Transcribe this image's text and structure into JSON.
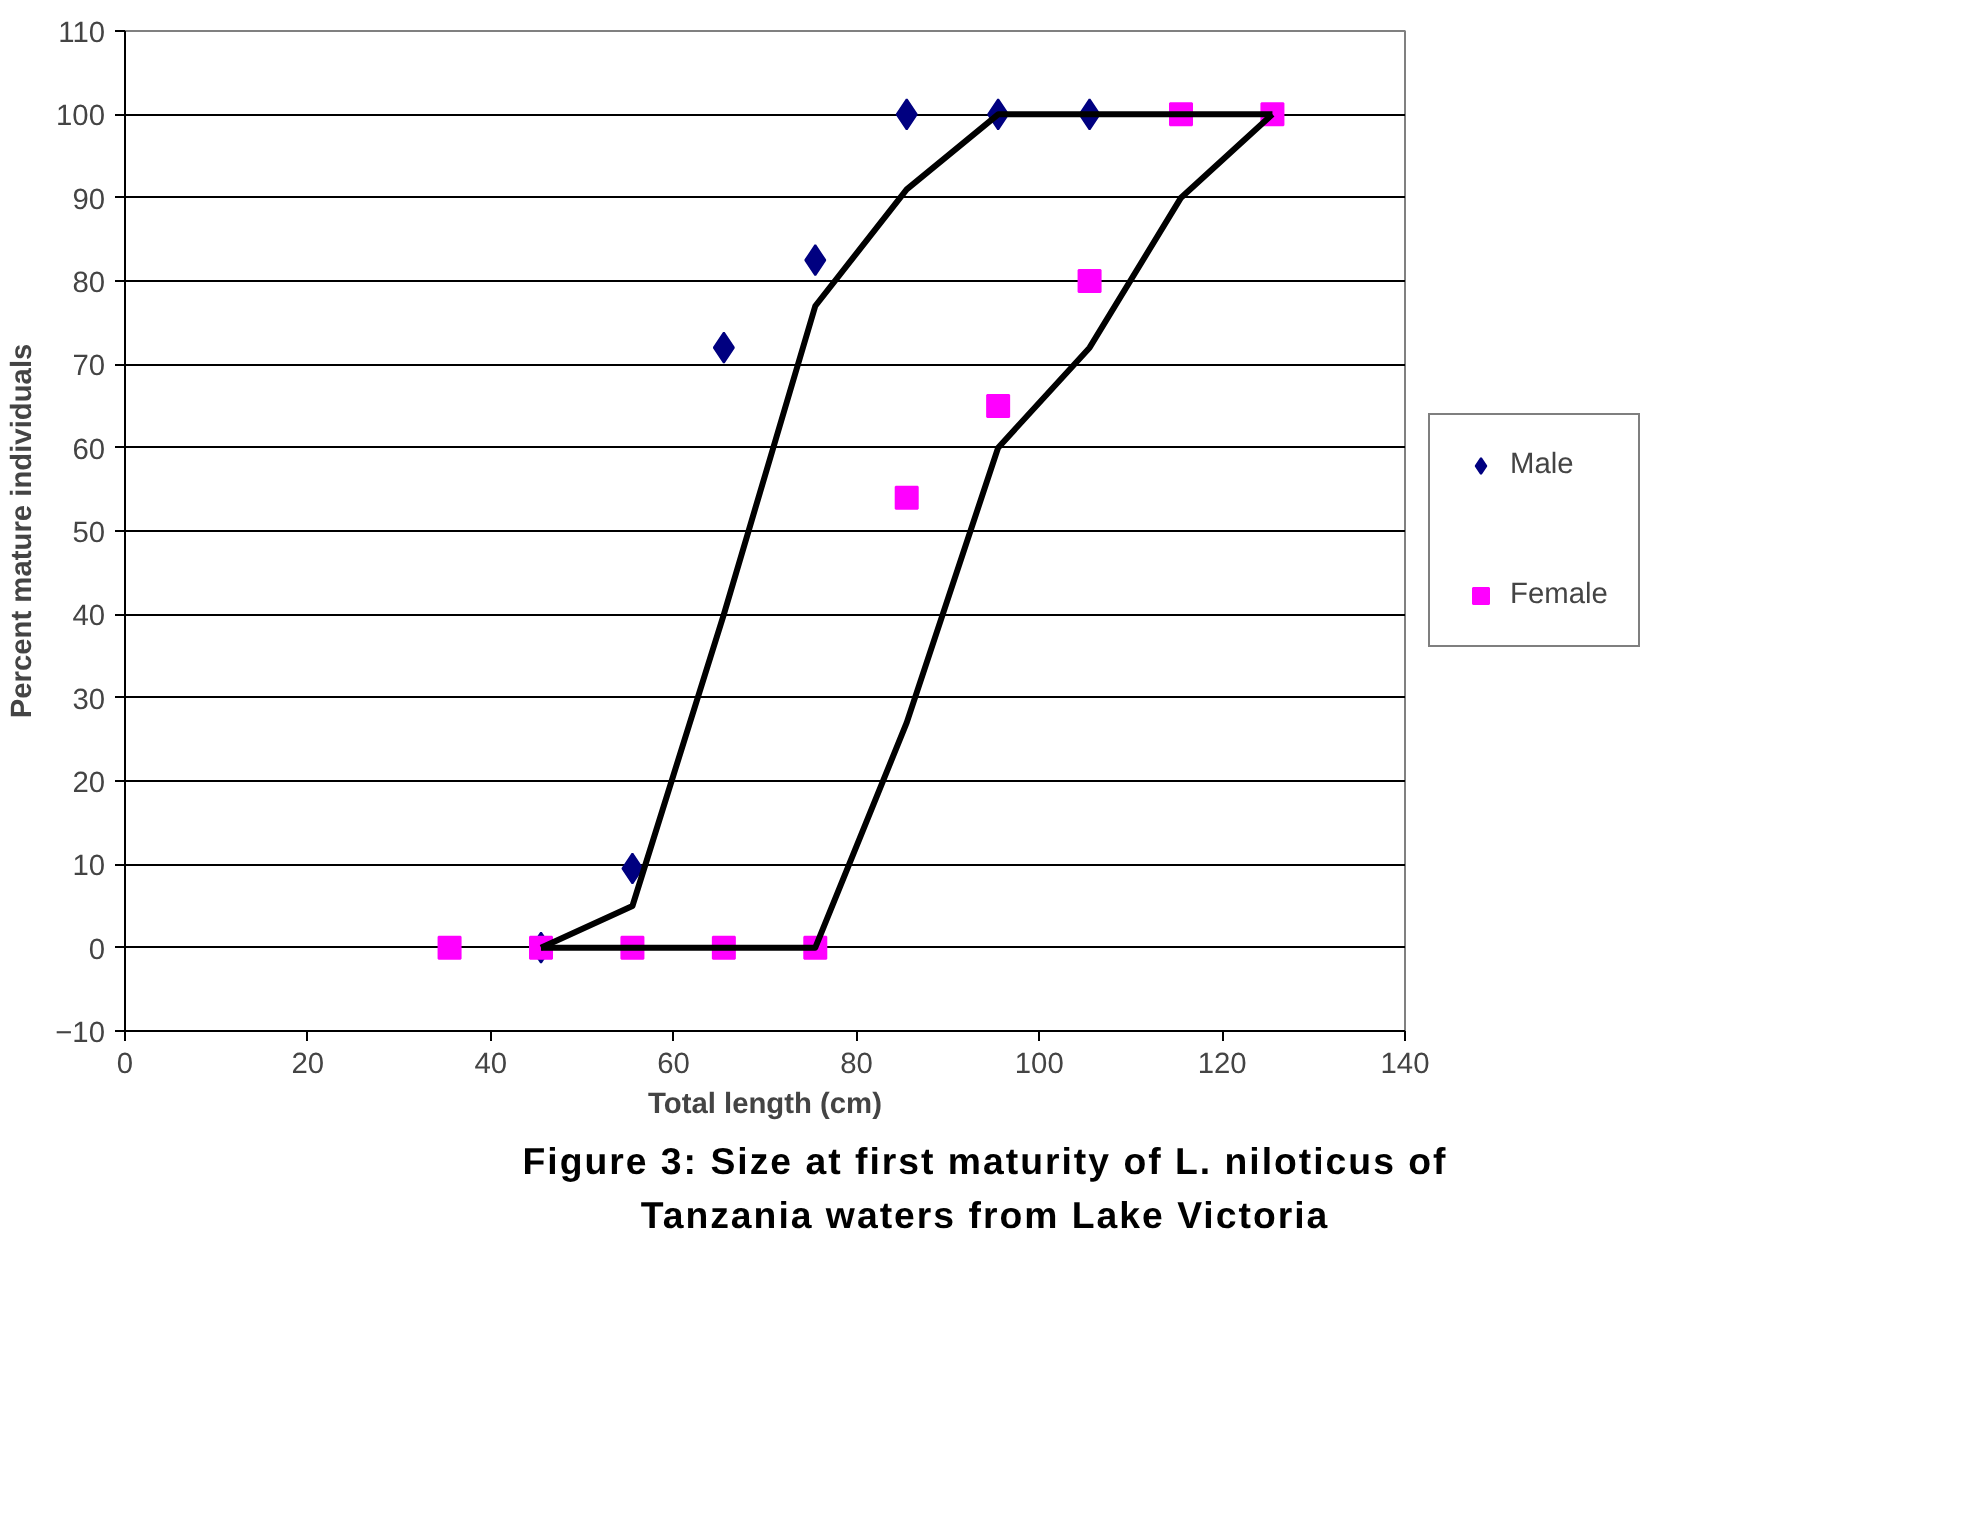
{
  "chart_data": {
    "type": "scatter",
    "title": "Figure 3: Size at first maturity of L. niloticus of Tanzania waters from Lake Victoria",
    "xlabel": "Total length (cm)",
    "ylabel": "Percent mature individuals",
    "xlim": [
      0,
      140
    ],
    "ylim": [
      -10,
      110
    ],
    "xticks": [
      0,
      20,
      40,
      60,
      80,
      100,
      120,
      140
    ],
    "yticks": [
      -10,
      0,
      10,
      20,
      30,
      40,
      50,
      60,
      70,
      80,
      90,
      100,
      110
    ],
    "grid": "y",
    "legend": "right",
    "series": [
      {
        "name": "Male",
        "color": "#000080",
        "marker": "diamond",
        "x": [
          45.5,
          55.5,
          65.5,
          75.5,
          85.5,
          95.5,
          105.5
        ],
        "values": [
          0,
          9.5,
          72,
          82.5,
          100,
          100,
          100
        ]
      },
      {
        "name": "Female",
        "color": "#ff00ff",
        "marker": "square",
        "x": [
          35.5,
          45.5,
          55.5,
          65.5,
          75.5,
          85.5,
          95.5,
          105.5,
          115.5,
          125.5
        ],
        "values": [
          0,
          0,
          0,
          0,
          0,
          54,
          65,
          80,
          100,
          100
        ]
      },
      {
        "type": "line",
        "color": "#000000",
        "marker": "none",
        "x": [
          45.5,
          55.5,
          65.5,
          75.5,
          85.5,
          95.5,
          105.5,
          115.5,
          125.5
        ],
        "values": [
          0,
          5,
          40,
          77,
          91,
          100,
          100,
          100,
          100
        ]
      },
      {
        "type": "line",
        "color": "#000000",
        "marker": "none",
        "x": [
          45.5,
          55.5,
          65.5,
          75.5,
          85.5,
          95.5,
          105.5,
          115.5,
          125.5
        ],
        "values": [
          0,
          0,
          0,
          0,
          27,
          60,
          72,
          90,
          100
        ]
      }
    ]
  }
}
